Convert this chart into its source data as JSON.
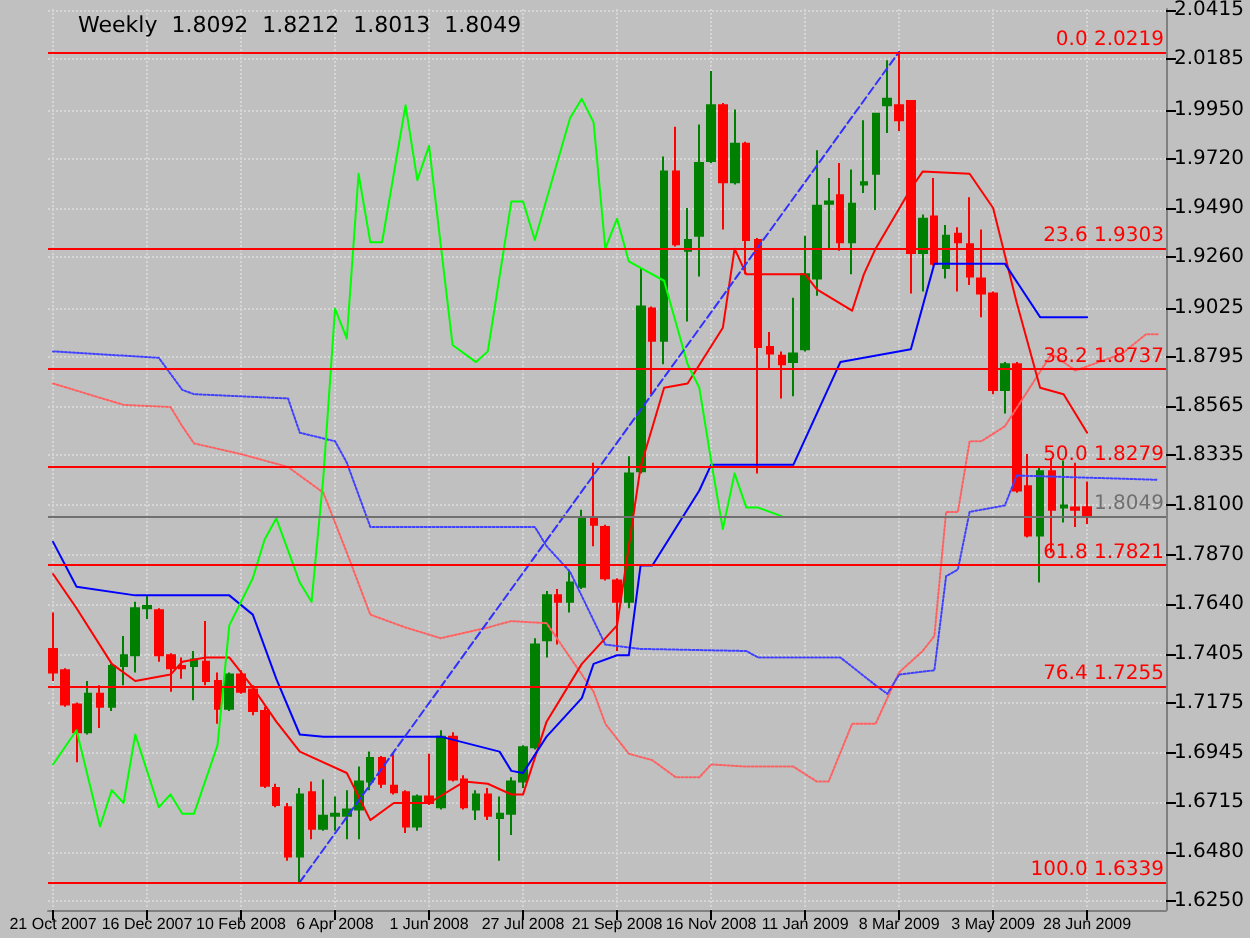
{
  "chart_data": {
    "type": "candlestick",
    "title": "Weekly  1.8092  1.8212  1.8013  1.8049",
    "xlim": [
      "2007-10-18",
      "2009-08-14"
    ],
    "xticks": [
      {
        "value": "2007-10-21",
        "label": "21 Oct 2007"
      },
      {
        "value": "2007-12-16",
        "label": "16 Dec 2007"
      },
      {
        "value": "2008-02-10",
        "label": "10 Feb 2008"
      },
      {
        "value": "2008-04-06",
        "label": "6 Apr 2008"
      },
      {
        "value": "2008-06-01",
        "label": "1 Jun 2008"
      },
      {
        "value": "2008-07-27",
        "label": "27 Jul 2008"
      },
      {
        "value": "2008-09-21",
        "label": "21 Sep 2008"
      },
      {
        "value": "2008-11-16",
        "label": "16 Nov 2008"
      },
      {
        "value": "2009-01-11",
        "label": "11 Jan 2009"
      },
      {
        "value": "2009-03-08",
        "label": "8 Mar 2009"
      },
      {
        "value": "2009-05-03",
        "label": "3 May 2009"
      },
      {
        "value": "2009-06-28",
        "label": "28 Jun 2009"
      }
    ],
    "ylim": [
      1.621,
      2.042
    ],
    "yticks": [
      {
        "value": 1.625,
        "label": "1.6250"
      },
      {
        "value": 1.648,
        "label": "1.6480"
      },
      {
        "value": 1.6715,
        "label": "1.6715"
      },
      {
        "value": 1.6945,
        "label": "1.6945"
      },
      {
        "value": 1.7175,
        "label": "1.7175"
      },
      {
        "value": 1.7405,
        "label": "1.7405"
      },
      {
        "value": 1.764,
        "label": "1.7640"
      },
      {
        "value": 1.787,
        "label": "1.7870"
      },
      {
        "value": 1.81,
        "label": "1.8100"
      },
      {
        "value": 1.8335,
        "label": "1.8335"
      },
      {
        "value": 1.8565,
        "label": "1.8565"
      },
      {
        "value": 1.8795,
        "label": "1.8795"
      },
      {
        "value": 1.9025,
        "label": "1.9025"
      },
      {
        "value": 1.926,
        "label": "1.9260"
      },
      {
        "value": 1.949,
        "label": "1.9490"
      },
      {
        "value": 1.972,
        "label": "1.9720"
      },
      {
        "value": 1.995,
        "label": "1.9950"
      },
      {
        "value": 2.0185,
        "label": "2.0185"
      },
      {
        "value": 2.0415,
        "label": "2.0415"
      }
    ],
    "grid": true,
    "ref_lines": [
      {
        "axis": "y",
        "value": 2.0219,
        "label": "0.0 2.0219",
        "color": "#ff0000"
      },
      {
        "axis": "y",
        "value": 1.9303,
        "label": "23.6 1.9303",
        "color": "#ff0000"
      },
      {
        "axis": "y",
        "value": 1.8737,
        "label": "38.2 1.8737",
        "color": "#ff0000"
      },
      {
        "axis": "y",
        "value": 1.8279,
        "label": "50.0 1.8279",
        "color": "#ff0000"
      },
      {
        "axis": "y",
        "value": 1.7821,
        "label": "61.8 1.7821",
        "color": "#ff0000"
      },
      {
        "axis": "y",
        "value": 1.7255,
        "label": "76.4 1.7255",
        "color": "#ff0000"
      },
      {
        "axis": "y",
        "value": 1.6339,
        "label": "100.0 1.6339",
        "color": "#ff0000"
      },
      {
        "axis": "y",
        "value": 1.8049,
        "label": "1.8049",
        "color": "#707070"
      }
    ],
    "series": [
      {
        "type": "line",
        "color": "#ff6060",
        "line_style": "dotted",
        "marker": "none",
        "x": [
          "2007-10-21",
          "2007-11-11",
          "2007-12-02",
          "2007-12-30",
          "2008-01-06",
          "2008-01-13",
          "2008-02-10",
          "2008-03-09",
          "2008-03-30",
          "2008-04-13",
          "2008-04-27",
          "2008-05-18",
          "2008-06-08",
          "2008-07-06",
          "2008-07-20",
          "2008-08-10",
          "2008-09-07",
          "2008-09-14",
          "2008-09-28",
          "2008-10-12",
          "2008-10-26",
          "2008-11-09",
          "2008-11-16",
          "2008-12-07",
          "2009-01-04",
          "2009-01-18",
          "2009-01-25",
          "2009-02-08",
          "2009-02-22",
          "2009-03-08",
          "2009-03-22",
          "2009-03-29",
          "2009-04-05",
          "2009-04-12",
          "2009-04-19",
          "2009-04-26",
          "2009-05-10",
          "2009-05-24",
          "2009-06-07",
          "2009-06-21",
          "2009-07-19",
          "2009-08-02",
          "2009-08-09"
        ],
        "values": [
          1.867,
          1.862,
          1.857,
          1.856,
          1.847,
          1.839,
          1.834,
          1.828,
          1.816,
          1.788,
          1.759,
          1.753,
          1.748,
          1.753,
          1.756,
          1.755,
          1.723,
          1.708,
          1.694,
          1.691,
          1.683,
          1.683,
          1.689,
          1.688,
          1.688,
          1.681,
          1.681,
          1.708,
          1.708,
          1.732,
          1.742,
          1.749,
          1.807,
          1.807,
          1.84,
          1.84,
          1.847,
          1.864,
          1.881,
          1.873,
          1.881,
          1.89,
          1.89
        ]
      },
      {
        "type": "line",
        "color": "#4040ff",
        "line_style": "dotted",
        "marker": "none",
        "x": [
          "2007-10-21",
          "2007-12-23",
          "2008-01-06",
          "2008-01-13",
          "2008-03-09",
          "2008-03-16",
          "2008-04-06",
          "2008-04-13",
          "2008-04-27",
          "2008-08-03",
          "2008-08-10",
          "2008-08-24",
          "2008-09-14",
          "2008-10-05",
          "2008-12-07",
          "2008-12-14",
          "2009-02-01",
          "2009-02-22",
          "2009-03-01",
          "2009-03-08",
          "2009-03-29",
          "2009-04-05",
          "2009-04-12",
          "2009-04-19",
          "2009-05-10",
          "2009-05-17",
          "2009-08-09"
        ],
        "values": [
          1.882,
          1.879,
          1.864,
          1.862,
          1.86,
          1.844,
          1.84,
          1.83,
          1.8,
          1.8,
          1.791,
          1.779,
          1.745,
          1.743,
          1.742,
          1.739,
          1.739,
          1.726,
          1.722,
          1.731,
          1.733,
          1.777,
          1.78,
          1.807,
          1.81,
          1.824,
          1.822
        ]
      },
      {
        "type": "candlestick",
        "x": [
          "2007-10-21",
          "2007-10-28",
          "2007-11-04",
          "2007-11-11",
          "2007-11-18",
          "2007-11-25",
          "2007-12-02",
          "2007-12-09",
          "2007-12-16",
          "2007-12-23",
          "2007-12-30",
          "2008-01-06",
          "2008-01-13",
          "2008-01-20",
          "2008-01-27",
          "2008-02-03",
          "2008-02-10",
          "2008-02-17",
          "2008-02-24",
          "2008-03-02",
          "2008-03-09",
          "2008-03-16",
          "2008-03-23",
          "2008-03-30",
          "2008-04-06",
          "2008-04-13",
          "2008-04-20",
          "2008-04-27",
          "2008-05-04",
          "2008-05-11",
          "2008-05-18",
          "2008-05-25",
          "2008-06-01",
          "2008-06-08",
          "2008-06-15",
          "2008-06-22",
          "2008-06-29",
          "2008-07-06",
          "2008-07-13",
          "2008-07-20",
          "2008-07-27",
          "2008-08-03",
          "2008-08-10",
          "2008-08-17",
          "2008-08-24",
          "2008-08-31",
          "2008-09-07",
          "2008-09-14",
          "2008-09-21",
          "2008-09-28",
          "2008-10-05",
          "2008-10-12",
          "2008-10-19",
          "2008-10-26",
          "2008-11-02",
          "2008-11-09",
          "2008-11-16",
          "2008-11-23",
          "2008-11-30",
          "2008-12-07",
          "2008-12-14",
          "2008-12-21",
          "2008-12-28",
          "2009-01-04",
          "2009-01-11",
          "2009-01-18",
          "2009-01-25",
          "2009-02-01",
          "2009-02-08",
          "2009-02-15",
          "2009-02-22",
          "2009-03-01",
          "2009-03-08",
          "2009-03-15",
          "2009-03-22",
          "2009-03-29",
          "2009-04-05",
          "2009-04-12",
          "2009-04-19",
          "2009-04-26",
          "2009-05-03",
          "2009-05-10",
          "2009-05-17",
          "2009-05-24",
          "2009-05-31",
          "2009-06-07",
          "2009-06-14",
          "2009-06-21",
          "2009-06-28"
        ],
        "ohlc": [
          [
            1.743,
            1.76,
            1.728,
            1.732
          ],
          [
            1.733,
            1.734,
            1.716,
            1.717
          ],
          [
            1.717,
            1.718,
            1.69,
            1.704
          ],
          [
            1.704,
            1.728,
            1.703,
            1.722
          ],
          [
            1.722,
            1.726,
            1.706,
            1.716
          ],
          [
            1.716,
            1.736,
            1.714,
            1.735
          ],
          [
            1.735,
            1.749,
            1.726,
            1.74
          ],
          [
            1.74,
            1.765,
            1.732,
            1.762
          ],
          [
            1.762,
            1.768,
            1.757,
            1.763
          ],
          [
            1.761,
            1.762,
            1.737,
            1.74
          ],
          [
            1.74,
            1.741,
            1.723,
            1.734
          ],
          [
            1.735,
            1.739,
            1.729,
            1.734
          ],
          [
            1.735,
            1.742,
            1.719,
            1.738
          ],
          [
            1.737,
            1.756,
            1.726,
            1.728
          ],
          [
            1.728,
            1.732,
            1.708,
            1.715
          ],
          [
            1.715,
            1.732,
            1.714,
            1.731
          ],
          [
            1.731,
            1.733,
            1.722,
            1.723
          ],
          [
            1.724,
            1.726,
            1.712,
            1.714
          ],
          [
            1.714,
            1.716,
            1.678,
            1.679
          ],
          [
            1.678,
            1.68,
            1.669,
            1.67
          ],
          [
            1.669,
            1.671,
            1.644,
            1.646
          ],
          [
            1.646,
            1.678,
            1.6339,
            1.675
          ],
          [
            1.676,
            1.681,
            1.654,
            1.659
          ],
          [
            1.659,
            1.682,
            1.658,
            1.665
          ],
          [
            1.665,
            1.674,
            1.658,
            1.666
          ],
          [
            1.665,
            1.677,
            1.654,
            1.668
          ],
          [
            1.668,
            1.688,
            1.654,
            1.681
          ],
          [
            1.681,
            1.695,
            1.677,
            1.692
          ],
          [
            1.692,
            1.693,
            1.678,
            1.68
          ],
          [
            1.679,
            1.694,
            1.675,
            1.676
          ],
          [
            1.676,
            1.677,
            1.657,
            1.66
          ],
          [
            1.66,
            1.675,
            1.658,
            1.674
          ],
          [
            1.674,
            1.694,
            1.67,
            1.671
          ],
          [
            1.669,
            1.705,
            1.668,
            1.702
          ],
          [
            1.702,
            1.704,
            1.681,
            1.682
          ],
          [
            1.682,
            1.684,
            1.668,
            1.669
          ],
          [
            1.668,
            1.677,
            1.663,
            1.675
          ],
          [
            1.675,
            1.678,
            1.663,
            1.665
          ],
          [
            1.664,
            1.674,
            1.644,
            1.666
          ],
          [
            1.666,
            1.683,
            1.656,
            1.681
          ],
          [
            1.681,
            1.698,
            1.678,
            1.697
          ],
          [
            1.697,
            1.748,
            1.696,
            1.745
          ],
          [
            1.747,
            1.77,
            1.739,
            1.768
          ],
          [
            1.768,
            1.771,
            1.745,
            1.765
          ],
          [
            1.765,
            1.78,
            1.76,
            1.774
          ],
          [
            1.772,
            1.808,
            1.771,
            1.804
          ],
          [
            1.804,
            1.83,
            1.791,
            1.801
          ],
          [
            1.8,
            1.801,
            1.775,
            1.776
          ],
          [
            1.775,
            1.776,
            1.742,
            1.765
          ],
          [
            1.765,
            1.833,
            1.762,
            1.825
          ],
          [
            1.826,
            1.921,
            1.825,
            1.903
          ],
          [
            1.902,
            1.903,
            1.862,
            1.887
          ],
          [
            1.887,
            1.973,
            1.876,
            1.966
          ],
          [
            1.966,
            1.987,
            1.931,
            1.932
          ],
          [
            1.929,
            1.949,
            1.896,
            1.934
          ],
          [
            1.936,
            1.988,
            1.917,
            1.97
          ],
          [
            1.971,
            2.013,
            1.97,
            1.997
          ],
          [
            1.997,
            1.998,
            1.939,
            1.961
          ],
          [
            1.961,
            1.995,
            1.96,
            1.979
          ],
          [
            1.979,
            1.98,
            1.918,
            1.934
          ],
          [
            1.934,
            1.935,
            1.825,
            1.884
          ],
          [
            1.884,
            1.891,
            1.874,
            1.881
          ],
          [
            1.88,
            1.882,
            1.86,
            1.876
          ],
          [
            1.877,
            1.907,
            1.861,
            1.881
          ],
          [
            1.883,
            1.936,
            1.882,
            1.918
          ],
          [
            1.916,
            1.976,
            1.908,
            1.95
          ],
          [
            1.951,
            1.963,
            1.93,
            1.952
          ],
          [
            1.955,
            1.97,
            1.929,
            1.933
          ],
          [
            1.933,
            1.967,
            1.918,
            1.951
          ],
          [
            1.96,
            1.99,
            1.956,
            1.961
          ],
          [
            1.965,
            1.993,
            1.948,
            1.993
          ],
          [
            1.997,
            2.018,
            1.984,
            2.0
          ],
          [
            1.997,
            2.0219,
            1.985,
            1.99
          ],
          [
            1.999,
            1.999,
            1.909,
            1.928
          ],
          [
            1.928,
            1.946,
            1.91,
            1.944
          ],
          [
            1.945,
            1.963,
            1.922,
            1.923
          ],
          [
            1.921,
            1.941,
            1.916,
            1.936
          ],
          [
            1.937,
            1.94,
            1.91,
            1.933
          ],
          [
            1.932,
            1.954,
            1.913,
            1.917
          ],
          [
            1.916,
            1.939,
            1.898,
            1.909
          ],
          [
            1.909,
            1.91,
            1.862,
            1.864
          ],
          [
            1.864,
            1.877,
            1.853,
            1.876
          ],
          [
            1.876,
            1.877,
            1.816,
            1.817
          ],
          [
            1.819,
            1.834,
            1.795,
            1.796
          ],
          [
            1.796,
            1.828,
            1.774,
            1.826
          ],
          [
            1.826,
            1.832,
            1.788,
            1.808
          ],
          [
            1.809,
            1.831,
            1.802,
            1.81
          ],
          [
            1.809,
            1.83,
            1.8,
            1.808
          ],
          [
            1.8092,
            1.8212,
            1.8013,
            1.8049
          ]
        ],
        "colors": [
          "#ff0000",
          "#ff0000",
          "#ff0000",
          "#008000",
          "#ff0000",
          "#008000",
          "#008000",
          "#008000",
          "#008000",
          "#ff0000",
          "#ff0000",
          "#ff0000",
          "#008000",
          "#ff0000",
          "#ff0000",
          "#008000",
          "#ff0000",
          "#ff0000",
          "#ff0000",
          "#ff0000",
          "#ff0000",
          "#008000",
          "#ff0000",
          "#008000",
          "#008000",
          "#008000",
          "#008000",
          "#008000",
          "#ff0000",
          "#ff0000",
          "#ff0000",
          "#008000",
          "#ff0000",
          "#008000",
          "#ff0000",
          "#ff0000",
          "#008000",
          "#ff0000",
          "#008000",
          "#008000",
          "#008000",
          "#008000",
          "#008000",
          "#ff0000",
          "#008000",
          "#008000",
          "#ff0000",
          "#ff0000",
          "#ff0000",
          "#008000",
          "#008000",
          "#ff0000",
          "#008000",
          "#ff0000",
          "#008000",
          "#008000",
          "#008000",
          "#ff0000",
          "#008000",
          "#ff0000",
          "#ff0000",
          "#ff0000",
          "#ff0000",
          "#008000",
          "#008000",
          "#008000",
          "#008000",
          "#ff0000",
          "#008000",
          "#008000",
          "#008000",
          "#008000",
          "#ff0000",
          "#ff0000",
          "#008000",
          "#ff0000",
          "#008000",
          "#ff0000",
          "#ff0000",
          "#ff0000",
          "#ff0000",
          "#008000",
          "#ff0000",
          "#ff0000",
          "#008000",
          "#ff0000",
          "#008000",
          "#ff0000",
          "#ff0000"
        ]
      },
      {
        "type": "line",
        "color": "#ff0000",
        "line_style": "solid",
        "marker": "none",
        "x": [
          "2007-10-21",
          "2007-11-04",
          "2007-11-25",
          "2007-12-09",
          "2007-12-30",
          "2008-01-06",
          "2008-01-20",
          "2008-02-03",
          "2008-02-17",
          "2008-03-02",
          "2008-03-16",
          "2008-04-13",
          "2008-04-27",
          "2008-05-11",
          "2008-06-01",
          "2008-06-22",
          "2008-07-06",
          "2008-07-20",
          "2008-07-27",
          "2008-08-10",
          "2008-08-31",
          "2008-09-21",
          "2008-10-05",
          "2008-10-19",
          "2008-11-02",
          "2008-11-23",
          "2008-11-30",
          "2008-12-07",
          "2009-01-11",
          "2009-01-18",
          "2009-02-08",
          "2009-02-15",
          "2009-02-22",
          "2009-03-15",
          "2009-03-22",
          "2009-04-19",
          "2009-05-03",
          "2009-05-17",
          "2009-05-31",
          "2009-06-14",
          "2009-06-28"
        ],
        "values": [
          1.778,
          1.762,
          1.736,
          1.728,
          1.731,
          1.737,
          1.739,
          1.739,
          1.725,
          1.709,
          1.695,
          1.685,
          1.663,
          1.671,
          1.671,
          1.681,
          1.68,
          1.675,
          1.675,
          1.709,
          1.736,
          1.754,
          1.828,
          1.865,
          1.867,
          1.893,
          1.93,
          1.918,
          1.918,
          1.911,
          1.901,
          1.918,
          1.93,
          1.958,
          1.966,
          1.965,
          1.949,
          1.905,
          1.865,
          1.862,
          1.844
        ]
      },
      {
        "type": "line",
        "color": "#0000ff",
        "line_style": "solid",
        "marker": "none",
        "x": [
          "2007-10-21",
          "2007-11-04",
          "2007-12-09",
          "2008-02-03",
          "2008-02-17",
          "2008-03-02",
          "2008-03-16",
          "2008-03-30",
          "2008-06-08",
          "2008-07-13",
          "2008-07-20",
          "2008-07-27",
          "2008-08-10",
          "2008-08-31",
          "2008-09-07",
          "2008-09-21",
          "2008-09-28",
          "2008-10-05",
          "2008-10-12",
          "2008-11-09",
          "2008-11-16",
          "2009-01-04",
          "2009-02-01",
          "2009-03-15",
          "2009-03-29",
          "2009-05-10",
          "2009-05-31",
          "2009-06-28"
        ],
        "values": [
          1.793,
          1.772,
          1.768,
          1.768,
          1.759,
          1.729,
          1.703,
          1.702,
          1.702,
          1.695,
          1.686,
          1.685,
          1.702,
          1.72,
          1.736,
          1.74,
          1.74,
          1.782,
          1.782,
          1.817,
          1.829,
          1.829,
          1.877,
          1.883,
          1.923,
          1.923,
          1.898,
          1.898
        ]
      },
      {
        "type": "line",
        "color": "#00ff00",
        "line_style": "solid",
        "marker": "none",
        "x": [
          "2007-10-21",
          "2007-11-04",
          "2007-11-18",
          "2007-11-25",
          "2007-12-02",
          "2007-12-09",
          "2007-12-23",
          "2007-12-30",
          "2008-01-06",
          "2008-01-13",
          "2008-01-27",
          "2008-02-03",
          "2008-02-17",
          "2008-02-24",
          "2008-03-02",
          "2008-03-16",
          "2008-03-23",
          "2008-03-30",
          "2008-04-06",
          "2008-04-13",
          "2008-04-20",
          "2008-04-27",
          "2008-05-04",
          "2008-05-18",
          "2008-05-25",
          "2008-06-01",
          "2008-06-15",
          "2008-06-29",
          "2008-07-06",
          "2008-07-20",
          "2008-07-27",
          "2008-08-03",
          "2008-08-24",
          "2008-08-31",
          "2008-09-07",
          "2008-09-14",
          "2008-09-21",
          "2008-09-28",
          "2008-10-05",
          "2008-10-19",
          "2008-11-02",
          "2008-11-09",
          "2008-11-16",
          "2008-11-23",
          "2008-11-30",
          "2008-12-07",
          "2008-12-14",
          "2008-12-28"
        ],
        "values": [
          1.689,
          1.705,
          1.66,
          1.677,
          1.671,
          1.703,
          1.669,
          1.675,
          1.666,
          1.666,
          1.698,
          1.754,
          1.776,
          1.794,
          1.804,
          1.774,
          1.765,
          1.823,
          1.902,
          1.888,
          1.965,
          1.933,
          1.933,
          1.997,
          1.962,
          1.978,
          1.885,
          1.877,
          1.882,
          1.952,
          1.952,
          1.934,
          1.991,
          2.0,
          1.989,
          1.93,
          1.944,
          1.924,
          1.921,
          1.915,
          1.876,
          1.865,
          1.831,
          1.799,
          1.825,
          1.809,
          1.809,
          1.805
        ]
      },
      {
        "type": "line",
        "color": "#3030ff",
        "line_style": "dashed",
        "marker": "none",
        "x": [
          "2008-03-16",
          "2009-03-08"
        ],
        "values": [
          1.634,
          2.022
        ]
      }
    ]
  }
}
